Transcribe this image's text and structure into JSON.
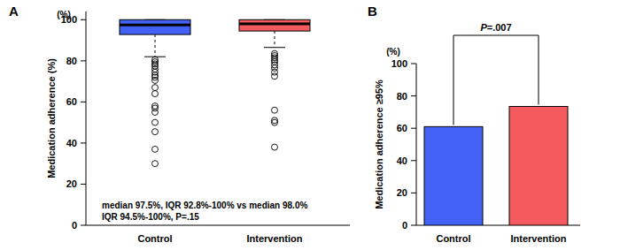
{
  "chart_data": [
    {
      "type": "box",
      "panel_label": "A",
      "unit_label": "(%)",
      "y_label": "Medication adherence (%)",
      "categories": [
        "Control",
        "Intervention"
      ],
      "colors": [
        "#4361f5",
        "#f55a5e"
      ],
      "ylim": [
        0,
        104
      ],
      "yticks": [
        0,
        20,
        40,
        60,
        80,
        100
      ],
      "boxes": [
        {
          "q1": 92.8,
          "median": 97.5,
          "q3": 100,
          "whisker_low": 82,
          "whisker_high": 100,
          "outliers": [
            80.5,
            79.5,
            78.5,
            77.5,
            76,
            74.5,
            73,
            72,
            70.5,
            67,
            64,
            58,
            57,
            55,
            50,
            45.5,
            37,
            30
          ]
        },
        {
          "q1": 94.5,
          "median": 98,
          "q3": 100,
          "whisker_low": 86.5,
          "whisker_high": 100,
          "outliers": [
            83.5,
            82.5,
            81.5,
            80.5,
            79.5,
            78,
            76.5,
            74.5,
            72.5,
            56,
            51,
            50,
            38
          ]
        }
      ],
      "annotation": [
        "median 97.5%, IQR 92.8%-100% vs median 98.0%",
        "IQR 94.5%-100%, P=.15"
      ]
    },
    {
      "type": "bar",
      "panel_label": "B",
      "unit_label": "(%)",
      "y_label": "Medication adherence ≥95%",
      "categories": [
        "Control",
        "Intervention"
      ],
      "values": [
        61,
        73.5
      ],
      "colors": [
        "#4361f5",
        "#f55a5e"
      ],
      "ylim": [
        0,
        100
      ],
      "yticks": [
        0,
        20,
        40,
        60,
        80,
        100
      ],
      "annotation": "P=.007"
    }
  ]
}
